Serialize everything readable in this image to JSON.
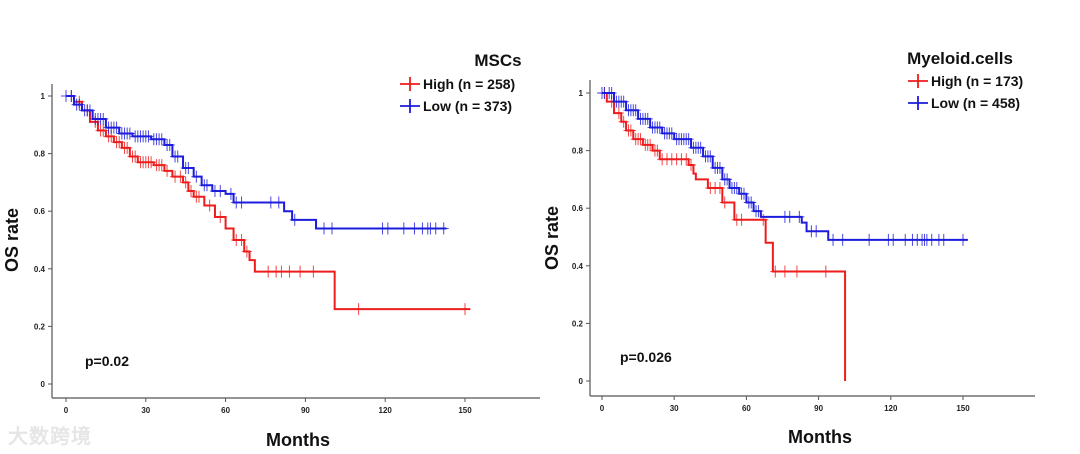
{
  "watermark": "大数跨境",
  "chart_data": [
    {
      "type": "line",
      "subtype": "kaplan-meier",
      "title": "MSCs",
      "xlabel": "Months",
      "ylabel": "OS rate",
      "xlim": [
        -5,
        175
      ],
      "ylim": [
        -0.05,
        1.05
      ],
      "xticks": [
        "0",
        "30",
        "60",
        "90",
        "120",
        "150"
      ],
      "yticks": [
        "0",
        "0.2",
        "0.4",
        "0.6",
        "0.8",
        "1"
      ],
      "annotation": "p=0.02",
      "legend_position": "top-right",
      "series": [
        {
          "name": "High (n = 258)",
          "color": "#ee1c1c",
          "steps": [
            [
              0,
              1
            ],
            [
              3,
              0.98
            ],
            [
              6,
              0.95
            ],
            [
              9,
              0.91
            ],
            [
              12,
              0.88
            ],
            [
              15,
              0.86
            ],
            [
              18,
              0.84
            ],
            [
              21,
              0.82
            ],
            [
              24,
              0.79
            ],
            [
              27,
              0.77
            ],
            [
              33,
              0.76
            ],
            [
              37,
              0.74
            ],
            [
              40,
              0.72
            ],
            [
              44,
              0.7
            ],
            [
              46,
              0.67
            ],
            [
              48,
              0.65
            ],
            [
              52,
              0.62
            ],
            [
              56,
              0.58
            ],
            [
              60,
              0.54
            ],
            [
              63,
              0.5
            ],
            [
              67,
              0.46
            ],
            [
              69,
              0.43
            ],
            [
              71,
              0.39
            ],
            [
              101,
              0.26
            ],
            [
              152,
              0.26
            ]
          ],
          "censored": [
            2,
            5,
            8,
            11,
            13,
            14,
            16,
            17,
            19,
            20,
            22,
            23,
            25,
            26,
            28,
            29,
            30,
            31,
            32,
            34,
            35,
            36,
            38,
            41,
            43,
            45,
            47,
            49,
            50,
            54,
            58,
            64,
            66,
            68,
            76,
            79,
            81,
            84,
            88,
            93,
            110,
            150
          ]
        },
        {
          "name": "Low (n = 373)",
          "color": "#1c1cdc",
          "steps": [
            [
              0,
              1
            ],
            [
              3,
              0.97
            ],
            [
              6,
              0.95
            ],
            [
              10,
              0.92
            ],
            [
              15,
              0.89
            ],
            [
              20,
              0.87
            ],
            [
              25,
              0.86
            ],
            [
              32,
              0.85
            ],
            [
              37,
              0.83
            ],
            [
              40,
              0.79
            ],
            [
              44,
              0.75
            ],
            [
              48,
              0.72
            ],
            [
              51,
              0.69
            ],
            [
              55,
              0.67
            ],
            [
              60,
              0.66
            ],
            [
              63,
              0.63
            ],
            [
              82,
              0.6
            ],
            [
              85,
              0.57
            ],
            [
              94,
              0.54
            ],
            [
              143,
              0.54
            ]
          ],
          "censored": [
            0,
            2,
            4,
            5,
            7,
            8,
            9,
            11,
            12,
            13,
            14,
            16,
            17,
            18,
            19,
            21,
            22,
            23,
            24,
            26,
            27,
            28,
            29,
            30,
            31,
            33,
            34,
            35,
            36,
            38,
            39,
            41,
            42,
            45,
            46,
            49,
            52,
            53,
            56,
            58,
            62,
            64,
            66,
            77,
            80,
            86,
            97,
            100,
            119,
            121,
            127,
            131,
            134,
            136,
            137,
            139,
            142
          ]
        }
      ]
    },
    {
      "type": "line",
      "subtype": "kaplan-meier",
      "title": "Myeloid.cells",
      "xlabel": "Months",
      "ylabel": "OS rate",
      "xlim": [
        -5,
        180
      ],
      "ylim": [
        -0.05,
        1.05
      ],
      "xticks": [
        "0",
        "30",
        "60",
        "90",
        "120",
        "150"
      ],
      "yticks": [
        "0",
        "0.2",
        "0.4",
        "0.6",
        "0.8",
        "1"
      ],
      "annotation": "p=0.026",
      "legend_position": "top-right",
      "series": [
        {
          "name": "High (n = 173)",
          "color": "#ee1c1c",
          "steps": [
            [
              0,
              1
            ],
            [
              2,
              0.97
            ],
            [
              5,
              0.93
            ],
            [
              8,
              0.9
            ],
            [
              10,
              0.87
            ],
            [
              13,
              0.84
            ],
            [
              17,
              0.82
            ],
            [
              21,
              0.8
            ],
            [
              24,
              0.77
            ],
            [
              36,
              0.75
            ],
            [
              38,
              0.72
            ],
            [
              39,
              0.7
            ],
            [
              44,
              0.67
            ],
            [
              50,
              0.62
            ],
            [
              55,
              0.56
            ],
            [
              68,
              0.48
            ],
            [
              71,
              0.38
            ],
            [
              101,
              0.38
            ],
            [
              101,
              0.0
            ]
          ],
          "censored": [
            1,
            4,
            7,
            9,
            11,
            12,
            14,
            15,
            16,
            18,
            19,
            20,
            22,
            23,
            25,
            27,
            29,
            31,
            33,
            35,
            37,
            45,
            47,
            49,
            51,
            56,
            58,
            67,
            72,
            76,
            81,
            93
          ]
        },
        {
          "name": "Low (n = 458)",
          "color": "#1c1cdc",
          "steps": [
            [
              0,
              1
            ],
            [
              5,
              0.97
            ],
            [
              10,
              0.94
            ],
            [
              15,
              0.91
            ],
            [
              20,
              0.88
            ],
            [
              25,
              0.86
            ],
            [
              30,
              0.84
            ],
            [
              37,
              0.81
            ],
            [
              42,
              0.78
            ],
            [
              46,
              0.74
            ],
            [
              50,
              0.7
            ],
            [
              53,
              0.67
            ],
            [
              57,
              0.65
            ],
            [
              60,
              0.62
            ],
            [
              63,
              0.59
            ],
            [
              66,
              0.57
            ],
            [
              83,
              0.55
            ],
            [
              85,
              0.52
            ],
            [
              94,
              0.49
            ],
            [
              152,
              0.49
            ]
          ],
          "censored": [
            0,
            1,
            3,
            4,
            6,
            7,
            8,
            9,
            11,
            12,
            13,
            14,
            16,
            17,
            18,
            19,
            21,
            22,
            23,
            24,
            26,
            27,
            28,
            29,
            31,
            32,
            33,
            34,
            35,
            36,
            38,
            39,
            40,
            41,
            43,
            44,
            45,
            47,
            48,
            49,
            51,
            52,
            54,
            55,
            56,
            58,
            59,
            61,
            62,
            64,
            65,
            76,
            78,
            82,
            87,
            89,
            96,
            100,
            111,
            119,
            121,
            126,
            129,
            131,
            133,
            134,
            135,
            137,
            140,
            142,
            150
          ]
        }
      ]
    }
  ]
}
